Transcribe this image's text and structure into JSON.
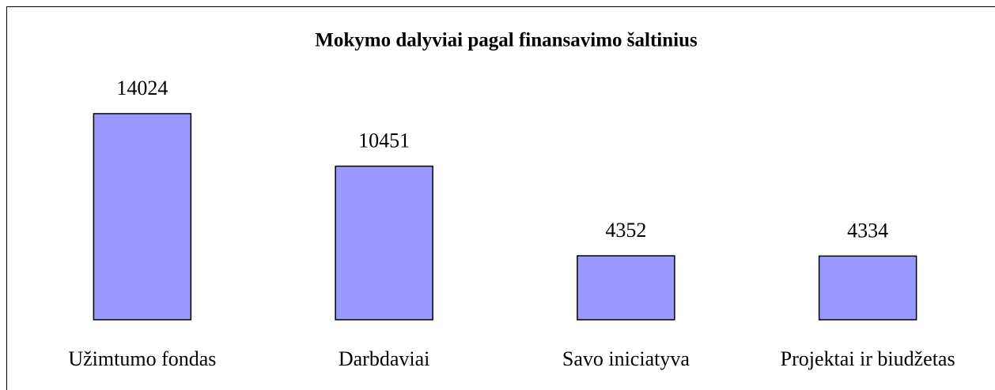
{
  "chart_data": {
    "type": "bar",
    "title": "Mokymo dalyviai pagal finansavimo šaltinius",
    "categories": [
      "Užimtumo fondas",
      "Darbdaviai",
      "Savo iniciatyva",
      "Projektai ir biudžetas"
    ],
    "values": [
      14024,
      10451,
      4352,
      4334
    ],
    "color": "#9999ff"
  }
}
